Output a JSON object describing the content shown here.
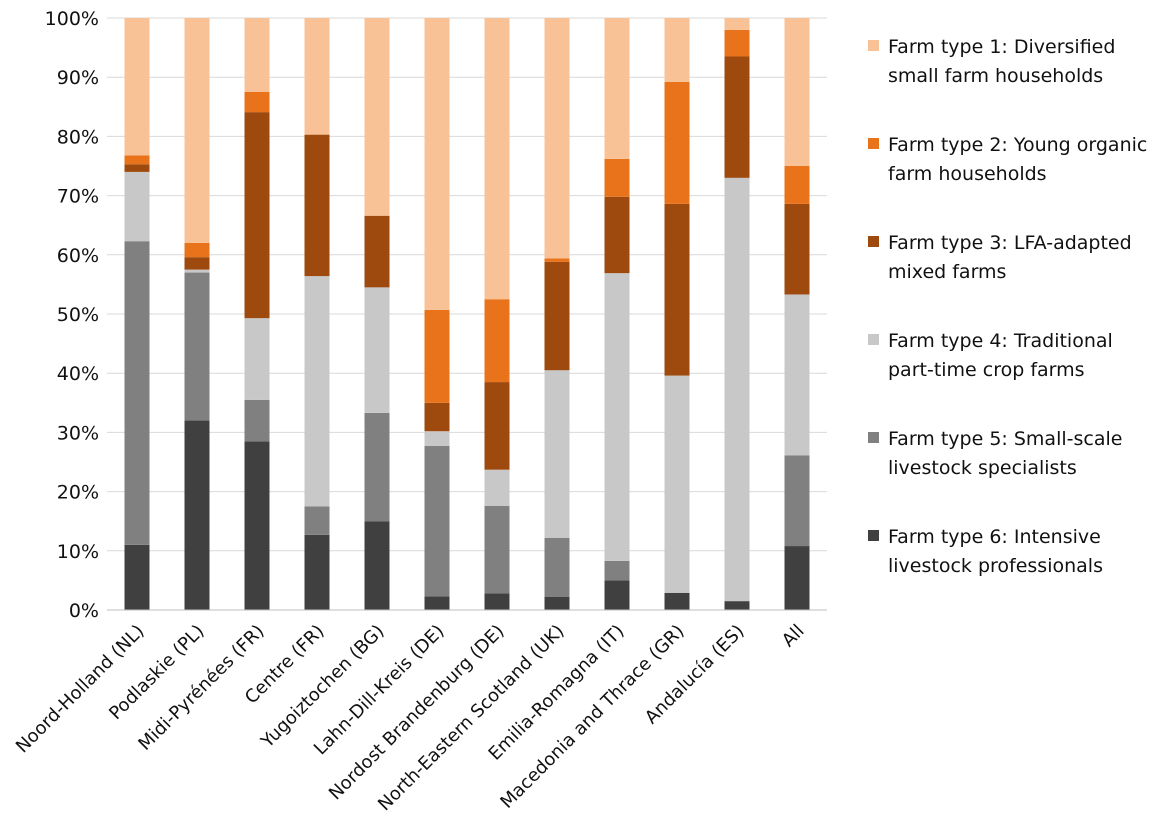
{
  "chart_data": {
    "type": "bar",
    "stacked": true,
    "percent": true,
    "title": "",
    "xlabel": "",
    "ylabel": "",
    "ylim": [
      0,
      100
    ],
    "yticks": [
      "0%",
      "10%",
      "20%",
      "30%",
      "40%",
      "50%",
      "60%",
      "70%",
      "80%",
      "90%",
      "100%"
    ],
    "grid": true,
    "legend_position": "right",
    "categories": [
      "Noord-Holland (NL)",
      "Podlaskie (PL)",
      "Midi-Pyrénées (FR)",
      "Centre (FR)",
      "Yugoiztochen (BG)",
      "Lahn-Dill-Kreis (DE)",
      "Nordost Brandenburg (DE)",
      "North-Eastern Scotland (UK)",
      "Emilia-Romagna (IT)",
      "Macedonia and Thrace (GR)",
      "Andalucía (ES)",
      "All"
    ],
    "series": [
      {
        "name": "Farm type 6: Intensive livestock professionals",
        "legend_lines": [
          "Farm type 6: Intensive",
          "livestock professionals"
        ],
        "color": "#404040",
        "values": [
          11,
          32,
          28.5,
          12.7,
          15,
          2.3,
          2.8,
          2.2,
          5,
          2.9,
          1.5,
          10.8
        ]
      },
      {
        "name": "Farm type 5: Small-scale livestock specialists",
        "legend_lines": [
          "Farm type 5: Small-scale",
          "livestock specialists"
        ],
        "color": "#808080",
        "values": [
          51.3,
          25,
          7,
          4.8,
          18.3,
          25.4,
          14.8,
          10,
          3.3,
          0,
          0,
          15.3
        ]
      },
      {
        "name": "Farm type 4: Traditional part-time crop farms",
        "legend_lines": [
          "Farm type 4: Traditional",
          "part-time crop farms"
        ],
        "color": "#c8c8c8",
        "values": [
          11.7,
          0.5,
          13.8,
          38.9,
          21.2,
          2.5,
          6.1,
          28.3,
          48.6,
          36.7,
          71.5,
          27.2
        ]
      },
      {
        "name": "Farm type 3: LFA-adapted mixed farms",
        "legend_lines": [
          "Farm type 3: LFA-adapted",
          "mixed farms"
        ],
        "color": "#9e4a0e",
        "values": [
          1.3,
          2.1,
          34.8,
          23.9,
          12.1,
          4.8,
          14.8,
          18.3,
          12.9,
          29,
          20.5,
          15.3
        ]
      },
      {
        "name": "Farm type 2: Young organic farm households",
        "legend_lines": [
          "Farm type 2: Young organic",
          "farm households"
        ],
        "color": "#e8731a",
        "values": [
          1.5,
          2.4,
          3.4,
          0,
          0,
          15.7,
          14,
          0.6,
          6.4,
          20.6,
          4.5,
          6.4
        ]
      },
      {
        "name": "Farm type 1: Diversified small farm households",
        "legend_lines": [
          "Farm type 1: Diversified",
          "small farm households"
        ],
        "color": "#f9c296",
        "values": [
          23.2,
          38,
          12.5,
          19.7,
          33.4,
          49.3,
          47.5,
          40.6,
          23.8,
          10.8,
          2,
          25
        ]
      }
    ],
    "legend_order": [
      "Farm type 1: Diversified small farm households",
      "Farm type 2: Young organic farm households",
      "Farm type 3: LFA-adapted mixed farms",
      "Farm type 4: Traditional part-time crop farms",
      "Farm type 5: Small-scale livestock specialists",
      "Farm type 6: Intensive livestock professionals"
    ]
  }
}
